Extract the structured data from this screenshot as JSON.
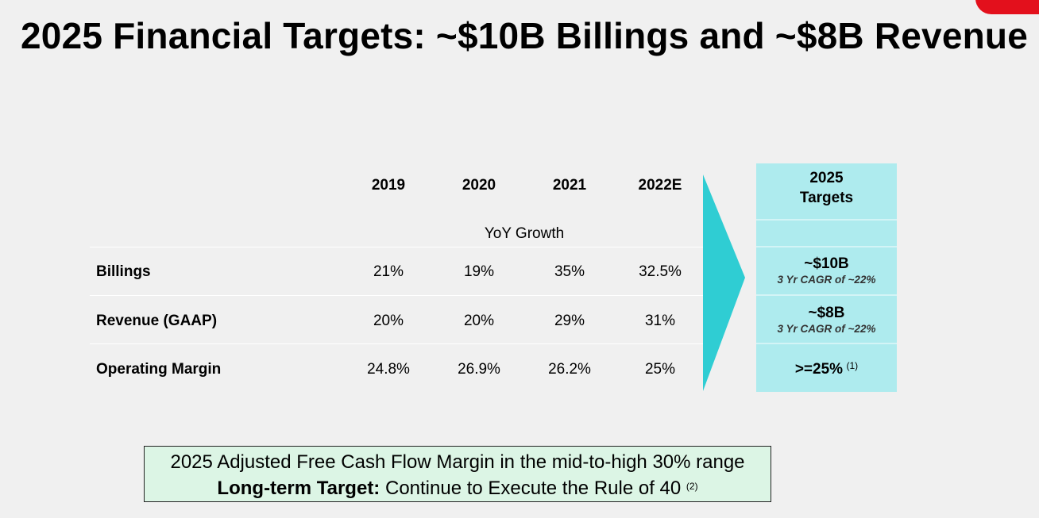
{
  "slide": {
    "title": "2025 Financial Targets: ~$10B Billings and ~$8B Revenue",
    "accent_color": "#e3101c"
  },
  "table": {
    "years": [
      "2019",
      "2020",
      "2021",
      "2022E"
    ],
    "subheader": "YoY Growth",
    "rows": [
      {
        "label": "Billings",
        "values": [
          "21%",
          "19%",
          "35%",
          "32.5%"
        ]
      },
      {
        "label": "Revenue (GAAP)",
        "values": [
          "20%",
          "20%",
          "29%",
          "31%"
        ]
      },
      {
        "label": "Operating Margin",
        "values": [
          "24.8%",
          "26.9%",
          "26.2%",
          "25%"
        ]
      }
    ],
    "arrow_color": "#2fcdd3"
  },
  "targets": {
    "header_line1": "2025",
    "header_line2": "Targets",
    "billings_value": "~$10B",
    "billings_note": "3 Yr CAGR of ~22%",
    "revenue_value": "~$8B",
    "revenue_note": "3 Yr CAGR of ~22%",
    "op_margin_value": ">=25%",
    "op_margin_footnote": "(1)",
    "fill_color": "#aeebee"
  },
  "footer_box": {
    "line1": "2025 Adjusted Free Cash Flow Margin in the mid-to-high 30% range",
    "line2_bold": "Long-term Target:",
    "line2_text": " Continue to Execute the Rule of 40 ",
    "line2_footnote": "(2)",
    "fill_color": "#dcf5e5"
  }
}
